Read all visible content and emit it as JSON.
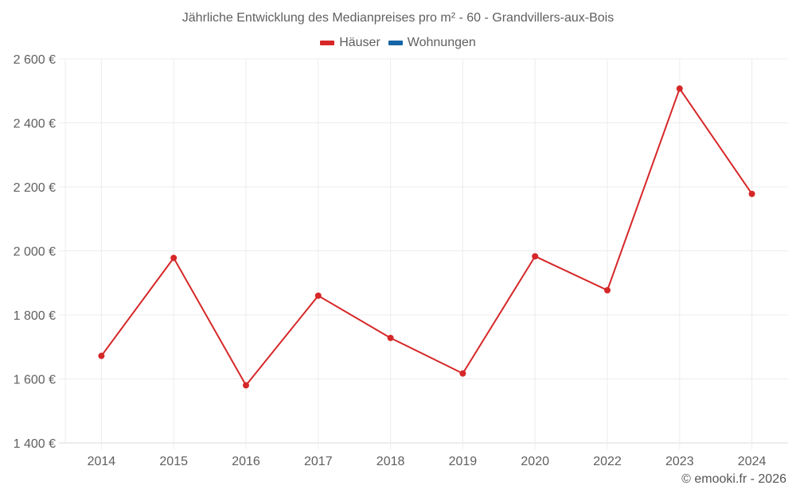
{
  "title": "Jährliche Entwicklung des Medianpreises pro m² - 60 - Grandvillers-aux-Bois",
  "legend": [
    {
      "label": "Häuser",
      "color": "#d62728"
    },
    {
      "label": "Wohnungen",
      "color": "#1565a7"
    }
  ],
  "credit": "© emooki.fr - 2026",
  "chart_data": {
    "type": "line",
    "title": "Jährliche Entwicklung des Medianpreises pro m² - 60 - Grandvillers-aux-Bois",
    "xlabel": "",
    "ylabel": "",
    "categories": [
      "2014",
      "2015",
      "2016",
      "2017",
      "2018",
      "2019",
      "2020",
      "2022",
      "2023",
      "2024"
    ],
    "series": [
      {
        "name": "Häuser",
        "color": "#d62728",
        "values": [
          1672,
          1978,
          1580,
          1860,
          1728,
          1617,
          1983,
          1877,
          2507,
          2178
        ]
      },
      {
        "name": "Wohnungen",
        "color": "#1565a7",
        "values": []
      }
    ],
    "ylim": [
      1400,
      2600
    ],
    "yticks": [
      1400,
      1600,
      1800,
      2000,
      2200,
      2400,
      2600
    ],
    "ytick_labels": [
      "1 400 €",
      "1 600 €",
      "1 800 €",
      "2 000 €",
      "2 200 €",
      "2 400 €",
      "2 600 €"
    ],
    "grid": true,
    "legend_position": "top"
  }
}
